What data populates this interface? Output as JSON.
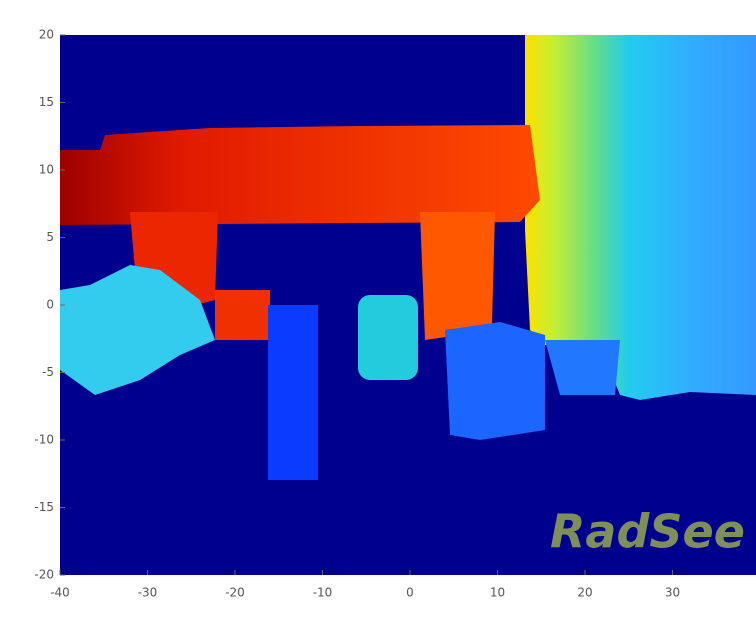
{
  "chart_data": {
    "type": "heatmap",
    "xlim": [
      -40,
      39
    ],
    "ylim": [
      -20,
      20
    ],
    "xticks": [
      -40,
      -30,
      -20,
      -10,
      0,
      10,
      20,
      30
    ],
    "yticks": [
      -20,
      -15,
      -10,
      -5,
      0,
      5,
      10,
      15,
      20
    ],
    "watermark": "RadSee"
  }
}
